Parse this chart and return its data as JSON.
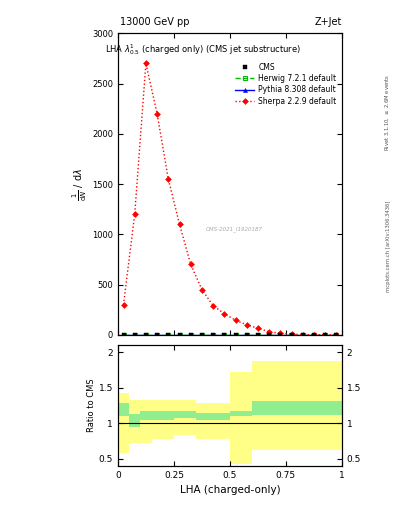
{
  "title": "LHA $\\lambda^{1}_{0.5}$ (charged only) (CMS jet substructure)",
  "top_left_label": "13000 GeV pp",
  "top_right_label": "Z+Jet",
  "right_label_top": "Rivet 3.1.10, $\\geq$ 2.6M events",
  "right_label_bottom": "mcplots.cern.ch [arXiv:1306.3436]",
  "xlabel": "LHA (charged-only)",
  "ylabel_ratio": "Ratio to CMS",
  "watermark": "CMS-2021_I1920187",
  "sherpa_x": [
    0.025,
    0.075,
    0.125,
    0.175,
    0.225,
    0.275,
    0.325,
    0.375,
    0.425,
    0.475,
    0.525,
    0.575,
    0.625,
    0.675,
    0.725,
    0.775,
    0.825,
    0.875,
    0.925,
    0.975
  ],
  "sherpa_y": [
    300,
    1200,
    2700,
    2200,
    1550,
    1100,
    700,
    450,
    290,
    210,
    145,
    100,
    65,
    30,
    15,
    5,
    2,
    1,
    0.5,
    0.2
  ],
  "herwig_x": [
    0.025,
    0.075,
    0.125,
    0.175,
    0.225,
    0.275,
    0.325,
    0.375,
    0.425,
    0.475,
    0.525,
    0.575,
    0.625,
    0.675,
    0.725,
    0.775,
    0.825,
    0.875,
    0.925,
    0.975
  ],
  "pythia_x": [
    0.025,
    0.075,
    0.125,
    0.175,
    0.225,
    0.275,
    0.325,
    0.375,
    0.425,
    0.475,
    0.525,
    0.575,
    0.625,
    0.675,
    0.725,
    0.775,
    0.825,
    0.875,
    0.925,
    0.975
  ],
  "cms_x": [
    0.025,
    0.075,
    0.125,
    0.175,
    0.225,
    0.275,
    0.325,
    0.375,
    0.425,
    0.475,
    0.525,
    0.575,
    0.625,
    0.675,
    0.725,
    0.775,
    0.825,
    0.875,
    0.925,
    0.975
  ],
  "ratio_x_edges": [
    0.0,
    0.05,
    0.1,
    0.15,
    0.2,
    0.25,
    0.3,
    0.35,
    0.4,
    0.5,
    0.6,
    0.7,
    1.0
  ],
  "ratio_green_lo": [
    1.1,
    0.95,
    1.05,
    1.05,
    1.05,
    1.08,
    1.08,
    1.05,
    1.05,
    1.1,
    1.12,
    1.12,
    1.12
  ],
  "ratio_green_hi": [
    1.28,
    1.13,
    1.18,
    1.18,
    1.18,
    1.18,
    1.18,
    1.14,
    1.14,
    1.18,
    1.32,
    1.32,
    1.32
  ],
  "ratio_yellow_lo": [
    0.58,
    0.73,
    0.73,
    0.78,
    0.78,
    0.83,
    0.83,
    0.78,
    0.78,
    0.43,
    0.63,
    0.63,
    0.63
  ],
  "ratio_yellow_hi": [
    1.43,
    1.33,
    1.33,
    1.33,
    1.33,
    1.33,
    1.33,
    1.28,
    1.28,
    1.73,
    1.88,
    1.88,
    1.88
  ],
  "ylim_main": [
    0,
    3000
  ],
  "ylim_ratio": [
    0.4,
    2.1
  ],
  "xlim": [
    0,
    1
  ],
  "color_sherpa": "#ff0000",
  "color_herwig": "#00bb00",
  "color_pythia": "#0000ff",
  "color_cms": "#000000",
  "color_green_band": "#90ee90",
  "color_yellow_band": "#ffff88",
  "bg_color": "#ffffff",
  "main_yticks": [
    0,
    500,
    1000,
    1500,
    2000,
    2500,
    3000
  ],
  "ratio_yticks": [
    0.5,
    1.0,
    1.5,
    2.0
  ],
  "xticks": [
    0,
    0.25,
    0.5,
    0.75,
    1.0
  ]
}
